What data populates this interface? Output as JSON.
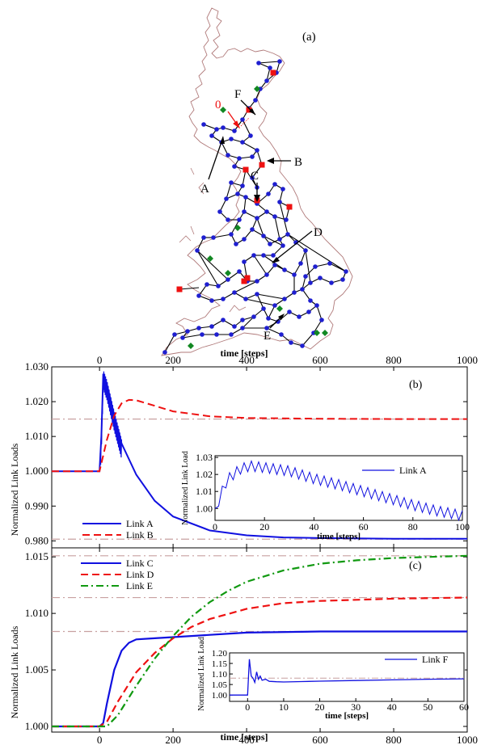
{
  "colors": {
    "map_outline": "#b07a7a",
    "node_blue": "#1f1fd0",
    "node_red": "#ee1111",
    "node_green": "#118822",
    "link_blue": "#1010e0",
    "link_red": "#ee1111",
    "link_green": "#119911",
    "threshold": "#c8a0a0",
    "annot_red": "#ee1111"
  },
  "panel_a": {
    "label": "(a)",
    "annotations": [
      {
        "text": "0",
        "color": "red"
      },
      {
        "text": "F"
      },
      {
        "text": "A"
      },
      {
        "text": "B"
      },
      {
        "text": "C"
      },
      {
        "text": "D"
      },
      {
        "text": "E"
      }
    ]
  },
  "top_axis_label": "time [steps]",
  "bottom_axis_label": "time [steps]",
  "chart_data": [
    {
      "id": "b",
      "type": "line",
      "label": "(b)",
      "xlabel": "time [steps]",
      "ylabel": "Normalized Link Loads",
      "xlim": [
        -130,
        1000
      ],
      "ylim": [
        0.978,
        1.03
      ],
      "xticks": [
        "0",
        "200",
        "400",
        "600",
        "800",
        "1000"
      ],
      "xtick_values": [
        0,
        200,
        400,
        600,
        800,
        1000
      ],
      "yticks": [
        "0.980",
        "0.990",
        "1.000",
        "1.010",
        "1.020",
        "1.030"
      ],
      "ytick_values": [
        0.98,
        0.99,
        1.0,
        1.01,
        1.02,
        1.03
      ],
      "thresholds": [
        1.015,
        0.9805
      ],
      "series": [
        {
          "name": "Link A",
          "style": "solid",
          "color": "blue",
          "x": [
            -130,
            0,
            5,
            10,
            20,
            40,
            60,
            100,
            150,
            200,
            300,
            400,
            500,
            600,
            800,
            1000
          ],
          "y": [
            1.0,
            1.0,
            1.01,
            1.028,
            1.025,
            1.016,
            1.008,
            0.999,
            0.9915,
            0.987,
            0.983,
            0.9816,
            0.981,
            0.9808,
            0.9806,
            0.9806
          ]
        },
        {
          "name": "Link B",
          "style": "dashed",
          "color": "red",
          "x": [
            -130,
            0,
            20,
            40,
            60,
            80,
            100,
            150,
            200,
            300,
            400,
            600,
            800,
            1000
          ],
          "y": [
            1.0,
            1.0,
            1.009,
            1.016,
            1.0195,
            1.0205,
            1.0204,
            1.0188,
            1.0172,
            1.0158,
            1.0153,
            1.0151,
            1.015,
            1.015
          ]
        }
      ],
      "inset": {
        "xlabel": "time [steps]",
        "ylabel": "Normalized Link Load",
        "xlim": [
          0,
          100
        ],
        "ylim": [
          0.993,
          1.031
        ],
        "xticks": [
          "0",
          "20",
          "40",
          "60",
          "80",
          "100"
        ],
        "xtick_values": [
          0,
          20,
          40,
          60,
          80,
          100
        ],
        "yticks": [
          "1.00",
          "1.01",
          "1.02",
          "1.03"
        ],
        "ytick_values": [
          1.0,
          1.01,
          1.02,
          1.03
        ],
        "series": [
          {
            "name": "Link A",
            "style": "solid",
            "color": "blue",
            "x": [
              0,
              2,
              5,
              10,
              14,
              20,
              30,
              40,
              50,
              60,
              70,
              80,
              90,
              100
            ],
            "y": [
              0.998,
              1.008,
              1.018,
              1.024,
              1.026,
              1.025,
              1.023,
              1.0185,
              1.015,
              1.011,
              1.007,
              1.003,
              0.9995,
              0.9968
            ]
          }
        ]
      }
    },
    {
      "id": "c",
      "type": "line",
      "label": "(c)",
      "xlabel": "time [steps]",
      "ylabel": "Normalized Link Loads",
      "xlim": [
        -130,
        1000
      ],
      "ylim": [
        0.9995,
        1.0158
      ],
      "xticks": [
        "0",
        "200",
        "400",
        "600",
        "800",
        "1000"
      ],
      "xtick_values": [
        0,
        200,
        400,
        600,
        800,
        1000
      ],
      "yticks": [
        "1.000",
        "1.005",
        "1.010",
        "1.015"
      ],
      "ytick_values": [
        1.0,
        1.005,
        1.01,
        1.015
      ],
      "thresholds": [
        1.0151,
        1.0114,
        1.0084
      ],
      "series": [
        {
          "name": "Link C",
          "style": "solid",
          "color": "blue",
          "x": [
            -130,
            0,
            10,
            20,
            40,
            60,
            80,
            100,
            150,
            200,
            300,
            400,
            600,
            800,
            1000
          ],
          "y": [
            1.0,
            1.0,
            1.0003,
            1.002,
            1.005,
            1.0067,
            1.0074,
            1.0077,
            1.0078,
            1.0079,
            1.0081,
            1.0083,
            1.0084,
            1.0084,
            1.0084
          ]
        },
        {
          "name": "Link D",
          "style": "dashed",
          "color": "red",
          "x": [
            -130,
            0,
            20,
            50,
            100,
            150,
            200,
            250,
            300,
            400,
            500,
            600,
            800,
            1000
          ],
          "y": [
            1.0,
            1.0,
            1.0004,
            1.0022,
            1.0048,
            1.0065,
            1.0078,
            1.0088,
            1.0095,
            1.0104,
            1.0109,
            1.0111,
            1.0113,
            1.0114
          ]
        },
        {
          "name": "Link E",
          "style": "dashdot",
          "color": "green",
          "x": [
            -130,
            20,
            50,
            100,
            150,
            200,
            250,
            300,
            350,
            400,
            500,
            600,
            700,
            800,
            900,
            1000
          ],
          "y": [
            1.0,
            1.0,
            1.001,
            1.0036,
            1.006,
            1.008,
            1.0097,
            1.011,
            1.012,
            1.0128,
            1.0138,
            1.0144,
            1.0147,
            1.0149,
            1.015,
            1.0151
          ]
        }
      ],
      "inset": {
        "xlabel": "time [steps]",
        "ylabel": "Normalized Link Load",
        "xlim": [
          -5,
          60
        ],
        "ylim": [
          0.97,
          1.2
        ],
        "xticks": [
          "0",
          "10",
          "20",
          "30",
          "40",
          "50",
          "60"
        ],
        "xtick_values": [
          0,
          10,
          20,
          30,
          40,
          50,
          60
        ],
        "yticks": [
          "1.00",
          "1.05",
          "1.10",
          "1.15",
          "1.20"
        ],
        "ytick_values": [
          1.0,
          1.05,
          1.1,
          1.15,
          1.2
        ],
        "thresholds": [
          1.08
        ],
        "series": [
          {
            "name": "Link F",
            "style": "solid",
            "color": "blue",
            "x": [
              -5,
              0,
              0.5,
              1,
              1.5,
              2,
              2.5,
              3,
              3.5,
              4,
              5,
              6,
              8,
              10,
              15,
              20,
              30,
              40,
              50,
              60
            ],
            "y": [
              1.0,
              1.0,
              1.17,
              1.09,
              1.08,
              1.06,
              1.11,
              1.075,
              1.09,
              1.07,
              1.075,
              1.065,
              1.063,
              1.062,
              1.064,
              1.066,
              1.069,
              1.072,
              1.075,
              1.077
            ]
          }
        ]
      }
    }
  ]
}
